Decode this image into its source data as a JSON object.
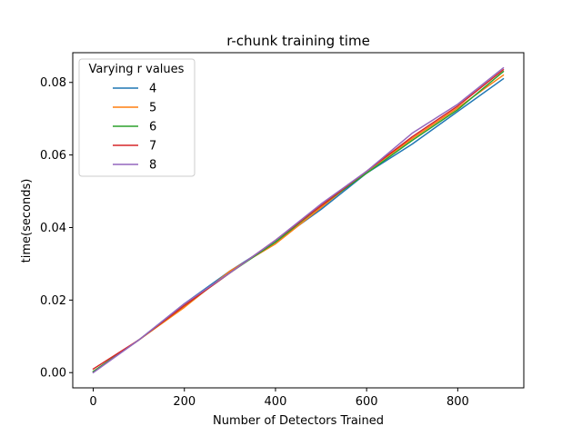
{
  "chart_data": {
    "type": "line",
    "title": "r-chunk training time",
    "xlabel": "Number of Detectors Trained",
    "ylabel": "time(seconds)",
    "xlim": [
      -45,
      945
    ],
    "ylim": [
      -0.0042,
      0.0882
    ],
    "xticks": [
      0,
      200,
      400,
      600,
      800
    ],
    "xtick_labels": [
      "0",
      "200",
      "400",
      "600",
      "800"
    ],
    "yticks": [
      0.0,
      0.02,
      0.04,
      0.06,
      0.08
    ],
    "ytick_labels": [
      "0.00",
      "0.02",
      "0.04",
      "0.06",
      "0.08"
    ],
    "grid": false,
    "legend": {
      "title": "Varying r values",
      "placement": "top-left"
    },
    "x": [
      0,
      100,
      200,
      300,
      400,
      500,
      600,
      700,
      800,
      900
    ],
    "series": [
      {
        "name": "4",
        "color": "#1f77b4",
        "values": [
          0.0002,
          0.009,
          0.019,
          0.028,
          0.036,
          0.045,
          0.055,
          0.063,
          0.072,
          0.081
        ]
      },
      {
        "name": "5",
        "color": "#ff7f0e",
        "values": [
          0.0003,
          0.009,
          0.018,
          0.028,
          0.0355,
          0.0455,
          0.0555,
          0.0645,
          0.073,
          0.082
        ]
      },
      {
        "name": "6",
        "color": "#2ca02c",
        "values": [
          0.0003,
          0.009,
          0.0185,
          0.0275,
          0.036,
          0.046,
          0.055,
          0.064,
          0.0725,
          0.083
        ]
      },
      {
        "name": "7",
        "color": "#d62728",
        "values": [
          0.001,
          0.009,
          0.0185,
          0.0275,
          0.0365,
          0.046,
          0.0555,
          0.065,
          0.0735,
          0.0835
        ]
      },
      {
        "name": "8",
        "color": "#9467bd",
        "values": [
          0.0,
          0.009,
          0.019,
          0.0275,
          0.0365,
          0.0465,
          0.0555,
          0.066,
          0.074,
          0.084
        ]
      }
    ]
  }
}
